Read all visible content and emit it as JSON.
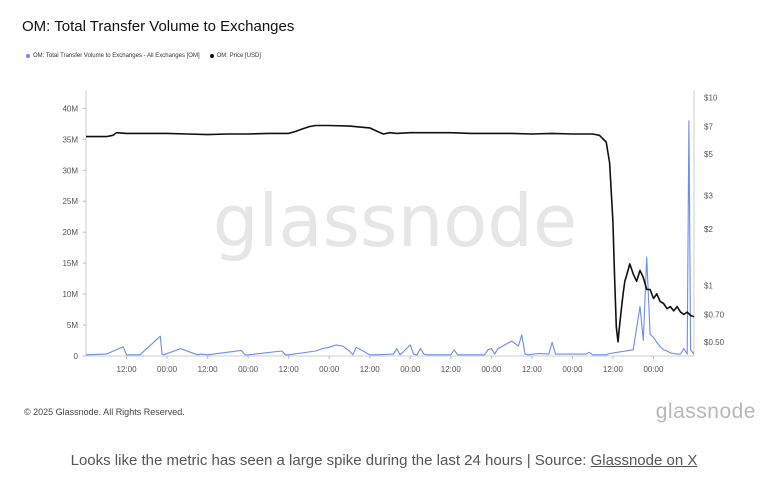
{
  "header": {
    "title": "OM: Total Transfer Volume to Exchanges"
  },
  "legend": {
    "volume_label": "OM: Total Transfer Volume to Exchanges - All Exchanges [OM]",
    "price_label": "OM: Price [USD]"
  },
  "colors": {
    "volume": "#6b8cf2",
    "price": "#111111",
    "axis_text": "#555555",
    "watermark": "#e6e6e6"
  },
  "watermark": "glassnode",
  "footer": {
    "copyright": "© 2025 Glassnode. All Rights Reserved.",
    "brand": "glassnode"
  },
  "caption": {
    "text": "Looks like the metric has seen a large spike during the last 24 hours | Source: ",
    "link": "Glassnode on X"
  },
  "chart_data": {
    "type": "line",
    "x_ticks": [
      "12:00",
      "00:00",
      "12:00",
      "00:00",
      "12:00",
      "00:00",
      "12:00",
      "00:00",
      "12:00",
      "00:00",
      "12:00",
      "00:00",
      "12:00",
      "00:00"
    ],
    "x_range_hours": [
      -12,
      168
    ],
    "left_axis": {
      "ticks": [
        "0",
        "5M",
        "10M",
        "15M",
        "20M",
        "25M",
        "30M",
        "35M",
        "40M"
      ],
      "range": [
        0,
        42000000
      ]
    },
    "right_axis": {
      "ticks": [
        "$0.50",
        "$0.70",
        "$1",
        "$2",
        "$3",
        "$5",
        "$7",
        "$10"
      ],
      "values": [
        0.5,
        0.7,
        1,
        2,
        3,
        5,
        7,
        10
      ],
      "scale": "log",
      "range": [
        0.42,
        10.2
      ]
    },
    "series": [
      {
        "name": "OM: Total Transfer Volume to Exchanges - All Exchanges [OM]",
        "axis": "left",
        "x": [
          -12,
          -6,
          -1,
          0,
          1,
          4,
          10,
          10.5,
          11,
          16,
          21,
          22,
          24,
          34,
          35,
          36,
          46,
          47,
          48,
          56,
          58,
          60,
          62,
          64,
          66,
          67,
          68,
          70,
          72,
          74,
          79,
          80,
          81,
          84,
          85,
          86,
          87,
          88,
          89,
          96,
          97,
          98,
          106,
          107,
          108,
          109,
          110,
          112,
          114,
          116,
          117,
          118,
          119,
          122,
          125,
          126,
          127,
          136,
          137,
          138,
          142,
          143,
          150,
          152,
          153,
          154,
          155,
          156,
          157,
          158,
          159,
          160,
          161,
          162,
          163,
          164,
          165,
          166,
          166.5,
          167,
          168
        ],
        "y": [
          200000,
          300000,
          1500000,
          200000,
          200000,
          200000,
          3200000,
          300000,
          200000,
          1200000,
          200000,
          300000,
          200000,
          900000,
          200000,
          200000,
          800000,
          200000,
          200000,
          800000,
          1200000,
          1400000,
          1800000,
          1600000,
          800000,
          200000,
          1400000,
          800000,
          200000,
          200000,
          300000,
          1200000,
          200000,
          1800000,
          300000,
          200000,
          1200000,
          300000,
          200000,
          200000,
          1000000,
          200000,
          200000,
          1000000,
          1200000,
          300000,
          1200000,
          1800000,
          2400000,
          1600000,
          3400000,
          300000,
          200000,
          400000,
          300000,
          2200000,
          300000,
          300000,
          600000,
          200000,
          200000,
          400000,
          1000000,
          8000000,
          2500000,
          16000000,
          3500000,
          3000000,
          2200000,
          1500000,
          1000000,
          800000,
          500000,
          400000,
          300000,
          300000,
          1200000,
          300000,
          38000000,
          1000000,
          300000
        ]
      },
      {
        "name": "OM: Price [USD]",
        "axis": "right",
        "x": [
          -12,
          -6,
          -4,
          -3,
          0,
          6,
          12,
          18,
          24,
          30,
          36,
          42,
          48,
          50,
          52,
          54,
          56,
          60,
          66,
          72,
          76,
          78,
          80,
          84,
          90,
          96,
          102,
          108,
          114,
          120,
          126,
          132,
          138,
          140,
          142,
          143,
          144,
          144.5,
          145,
          145.5,
          146,
          146.5,
          147,
          147.5,
          148,
          149,
          150,
          151,
          152,
          153,
          154,
          155,
          156,
          157,
          158,
          159,
          160,
          161,
          162,
          163,
          164,
          165,
          166,
          167,
          168
        ],
        "y": [
          6.2,
          6.2,
          6.3,
          6.5,
          6.45,
          6.45,
          6.45,
          6.4,
          6.35,
          6.4,
          6.4,
          6.45,
          6.45,
          6.6,
          6.8,
          7.0,
          7.1,
          7.1,
          7.05,
          6.9,
          6.4,
          6.5,
          6.45,
          6.5,
          6.5,
          6.5,
          6.45,
          6.45,
          6.45,
          6.4,
          6.45,
          6.4,
          6.4,
          6.3,
          5.8,
          4.5,
          2.2,
          1.1,
          0.6,
          0.5,
          0.62,
          0.75,
          0.9,
          1.05,
          1.12,
          1.3,
          1.15,
          1.05,
          1.2,
          1.1,
          0.95,
          0.95,
          0.85,
          0.9,
          0.82,
          0.8,
          0.75,
          0.77,
          0.73,
          0.77,
          0.72,
          0.7,
          0.72,
          0.69,
          0.68
        ]
      }
    ]
  }
}
